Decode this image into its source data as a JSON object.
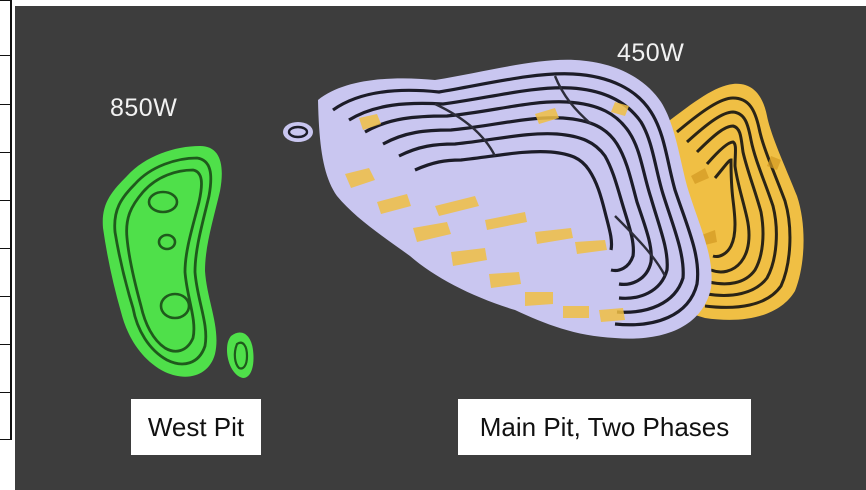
{
  "elevations": {
    "west": "850W",
    "main": "450W"
  },
  "labels": {
    "west_pit": "West Pit",
    "main_pit": "Main Pit, Two Phases"
  },
  "colors": {
    "background": "#3d3d3d",
    "west_pit_green": "#4fe04a",
    "main_pit_lavender": "#c9c6f0",
    "phase_two_yellow": "#f0bf44",
    "contour_dark": "#1c1c28"
  }
}
